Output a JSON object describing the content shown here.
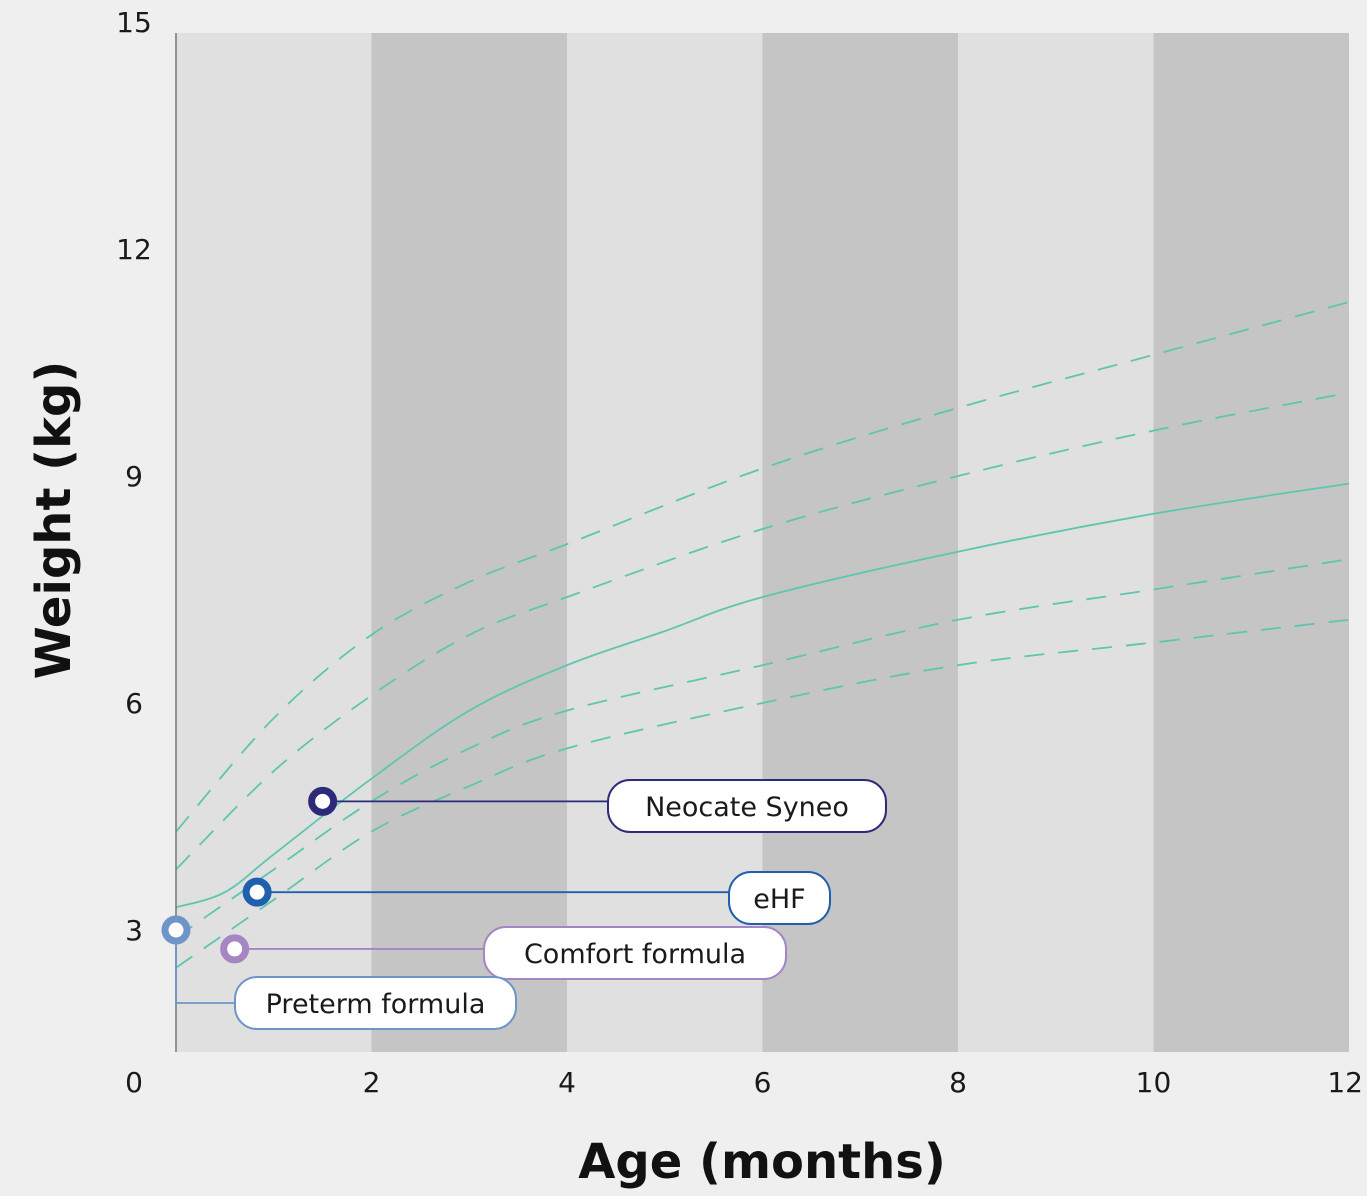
{
  "chart_data": {
    "type": "line",
    "xlabel": "Age (months)",
    "ylabel": "Weight (kg)",
    "xlim": [
      0,
      12
    ],
    "ylim": [
      1.5,
      15
    ],
    "x_ticks": [
      0,
      2,
      4,
      6,
      8,
      10,
      12
    ],
    "y_ticks": [
      3,
      6,
      9,
      12,
      15
    ],
    "background_bands": [
      {
        "from": 0,
        "to": 2,
        "color": "#dfe0df"
      },
      {
        "from": 2,
        "to": 4,
        "color": "#c4c5c4"
      },
      {
        "from": 4,
        "to": 6,
        "color": "#dfe0df"
      },
      {
        "from": 6,
        "to": 8,
        "color": "#c4c5c4"
      },
      {
        "from": 8,
        "to": 10,
        "color": "#dfe0df"
      },
      {
        "from": 10,
        "to": 12,
        "color": "#c4c5c4"
      }
    ],
    "curve_color": "#5ec6ae",
    "series": [
      {
        "style": "dashed",
        "points": [
          [
            0,
            4.3
          ],
          [
            1,
            5.8
          ],
          [
            2,
            6.9
          ],
          [
            3,
            7.6
          ],
          [
            4,
            8.1
          ],
          [
            6,
            9.1
          ],
          [
            8,
            9.9
          ],
          [
            10,
            10.6
          ],
          [
            12,
            11.3
          ]
        ]
      },
      {
        "style": "dashed",
        "points": [
          [
            0,
            3.8
          ],
          [
            1,
            5.1
          ],
          [
            2,
            6.1
          ],
          [
            3,
            6.9
          ],
          [
            4,
            7.4
          ],
          [
            6,
            8.3
          ],
          [
            8,
            9.0
          ],
          [
            10,
            9.6
          ],
          [
            12,
            10.1
          ]
        ]
      },
      {
        "style": "solid",
        "points": [
          [
            0,
            3.3
          ],
          [
            0.5,
            3.5
          ],
          [
            1,
            4.0
          ],
          [
            2,
            5.0
          ],
          [
            3,
            5.9
          ],
          [
            4,
            6.5
          ],
          [
            5,
            6.95
          ],
          [
            6,
            7.4
          ],
          [
            8,
            8.0
          ],
          [
            10,
            8.5
          ],
          [
            12,
            8.9
          ]
        ]
      },
      {
        "style": "dashed",
        "points": [
          [
            0,
            2.9
          ],
          [
            1,
            3.8
          ],
          [
            2,
            4.7
          ],
          [
            3,
            5.4
          ],
          [
            4,
            5.9
          ],
          [
            6,
            6.5
          ],
          [
            8,
            7.1
          ],
          [
            10,
            7.5
          ],
          [
            12,
            7.9
          ]
        ]
      },
      {
        "style": "dashed",
        "points": [
          [
            0,
            2.5
          ],
          [
            1,
            3.4
          ],
          [
            2,
            4.3
          ],
          [
            3,
            4.9
          ],
          [
            4,
            5.4
          ],
          [
            6,
            6.0
          ],
          [
            8,
            6.5
          ],
          [
            10,
            6.8
          ],
          [
            12,
            7.1
          ]
        ]
      }
    ],
    "markers": [
      {
        "name": "Neocate Syneo",
        "x": 1.5,
        "y": 4.7,
        "color": "#2e2a7a"
      },
      {
        "name": "eHF",
        "x": 0.83,
        "y": 3.5,
        "color": "#1f5fae"
      },
      {
        "name": "Comfort formula",
        "x": 0.6,
        "y": 2.75,
        "color": "#a585c2"
      },
      {
        "name": "Preterm formula",
        "x": 0,
        "y": 3.0,
        "color": "#6f94c8"
      }
    ]
  }
}
